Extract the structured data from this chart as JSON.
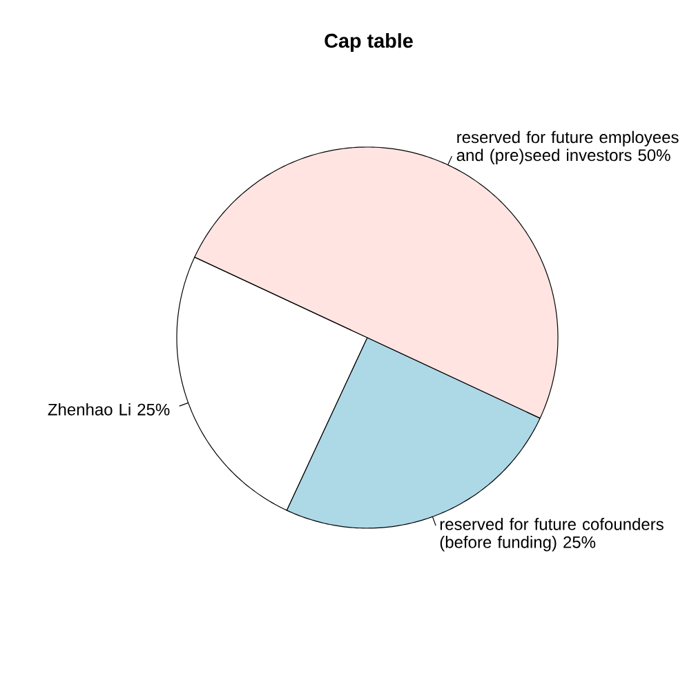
{
  "chart_data": {
    "type": "pie",
    "title": "Cap table",
    "categories": [
      "Zhenhao Li 25%",
      "reserved for future cofounders (before funding) 25%",
      "reserved for future employees and (pre)seed investors 50%"
    ],
    "values": [
      25,
      25,
      50
    ],
    "colors": [
      "#ffffff",
      "#add8e6",
      "#ffe4e1"
    ]
  }
}
